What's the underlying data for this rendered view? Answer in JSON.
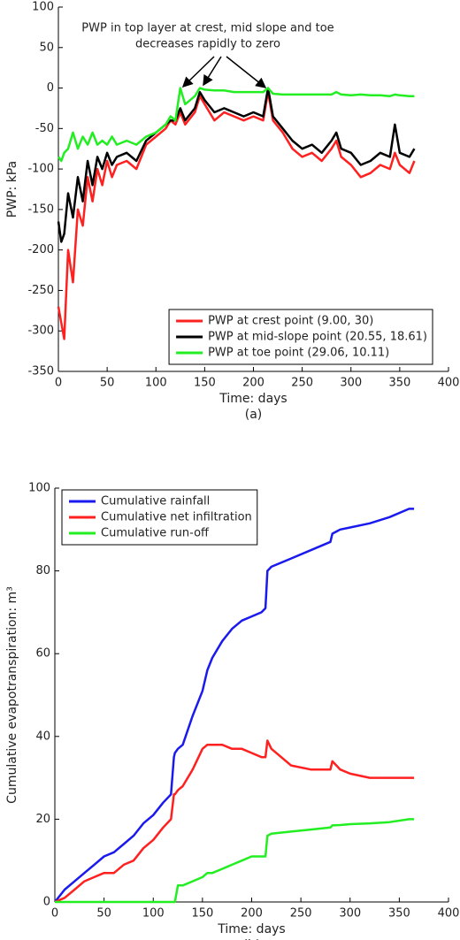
{
  "chart_data": [
    {
      "type": "line",
      "annotation": [
        "PWP in top layer at crest, mid slope and toe",
        "decreases rapidly to zero"
      ],
      "xlabel": "Time: days",
      "ylabel": "PWP: kPa",
      "caption": "(a)",
      "x": [
        0,
        3,
        6,
        10,
        15,
        20,
        25,
        30,
        35,
        40,
        45,
        50,
        55,
        60,
        70,
        80,
        90,
        100,
        110,
        115,
        120,
        125,
        130,
        140,
        145,
        150,
        160,
        170,
        180,
        190,
        200,
        210,
        215,
        220,
        230,
        240,
        250,
        260,
        270,
        280,
        285,
        290,
        300,
        310,
        320,
        330,
        340,
        345,
        350,
        360,
        365
      ],
      "series": [
        {
          "name": "PWP at crest point (9.00, 30)",
          "color": "#ff2020",
          "values": [
            -270,
            -290,
            -310,
            -200,
            -240,
            -150,
            -170,
            -110,
            -140,
            -100,
            -120,
            -90,
            -110,
            -95,
            -90,
            -100,
            -70,
            -60,
            -50,
            -40,
            -45,
            -30,
            -45,
            -30,
            -10,
            -20,
            -40,
            -30,
            -35,
            -40,
            -35,
            -40,
            -5,
            -40,
            -55,
            -75,
            -85,
            -80,
            -90,
            -75,
            -65,
            -85,
            -95,
            -110,
            -105,
            -95,
            -100,
            -80,
            -95,
            -105,
            -90
          ]
        },
        {
          "name": "PWP at mid-slope point (20.55, 18.61)",
          "color": "#000000",
          "values": [
            -165,
            -190,
            -180,
            -130,
            -160,
            -110,
            -140,
            -90,
            -120,
            -85,
            -100,
            -80,
            -95,
            -85,
            -80,
            -90,
            -65,
            -55,
            -45,
            -40,
            -40,
            -25,
            -40,
            -25,
            -5,
            -15,
            -30,
            -25,
            -30,
            -35,
            -30,
            -35,
            0,
            -35,
            -50,
            -65,
            -75,
            -70,
            -80,
            -65,
            -55,
            -75,
            -80,
            -95,
            -90,
            -80,
            -85,
            -45,
            -80,
            -85,
            -75
          ]
        },
        {
          "name": "PWP at toe point (29.06, 10.11)",
          "color": "#22ee22",
          "values": [
            -85,
            -90,
            -80,
            -75,
            -55,
            -75,
            -60,
            -70,
            -55,
            -70,
            -65,
            -70,
            -60,
            -70,
            -65,
            -70,
            -60,
            -55,
            -45,
            -35,
            -40,
            0,
            -20,
            -10,
            0,
            -2,
            -3,
            -3,
            -5,
            -5,
            -5,
            -5,
            0,
            -7,
            -8,
            -8,
            -8,
            -8,
            -8,
            -8,
            -5,
            -8,
            -9,
            -8,
            -9,
            -9,
            -10,
            -8,
            -9,
            -10,
            -10
          ]
        }
      ],
      "xlim": [
        0,
        400
      ],
      "xticks": [
        0,
        50,
        100,
        150,
        200,
        250,
        300,
        350,
        400
      ],
      "ylim": [
        -350,
        100
      ],
      "yticks": [
        -350,
        -300,
        -250,
        -200,
        -150,
        -100,
        -50,
        0,
        50,
        100
      ],
      "legend": "lower right"
    },
    {
      "type": "line",
      "xlabel": "Time: days",
      "ylabel": "Cumulative evapotranspiration: m³",
      "caption": "(b)",
      "x": [
        0,
        10,
        20,
        30,
        40,
        50,
        60,
        70,
        80,
        90,
        100,
        110,
        118,
        121,
        122,
        125,
        130,
        140,
        150,
        155,
        160,
        170,
        180,
        190,
        200,
        210,
        214,
        216,
        220,
        240,
        260,
        280,
        282,
        290,
        300,
        320,
        340,
        360,
        365
      ],
      "series": [
        {
          "name": "Cumulative rainfall",
          "color": "#1a1aee",
          "values": [
            0,
            3,
            5,
            7,
            9,
            11,
            12,
            14,
            16,
            19,
            21,
            24,
            26,
            35,
            36,
            37,
            38,
            45,
            51,
            56,
            59,
            63,
            66,
            68,
            69,
            70,
            71,
            80,
            81,
            83,
            85,
            87,
            89,
            90,
            90.5,
            91.5,
            93,
            95,
            95
          ]
        },
        {
          "name": "Cumulative net infiltration",
          "color": "#ff2020",
          "values": [
            0,
            1,
            3,
            5,
            6,
            7,
            7,
            9,
            10,
            13,
            15,
            18,
            20,
            26,
            26,
            27,
            28,
            32,
            37,
            38,
            38,
            38,
            37,
            37,
            36,
            35,
            35,
            39,
            37,
            33,
            32,
            32,
            34,
            32,
            31,
            30,
            30,
            30,
            30
          ]
        },
        {
          "name": "Cumulative run-off",
          "color": "#22ee22",
          "values": [
            0,
            0,
            0,
            0,
            0,
            0,
            0,
            0,
            0,
            0,
            0,
            0,
            0,
            0,
            0,
            4,
            4,
            5,
            6,
            7,
            7,
            8,
            9,
            10,
            11,
            11,
            11,
            16,
            16.5,
            17,
            17.5,
            18,
            18.5,
            18.6,
            18.8,
            19,
            19.3,
            20,
            20
          ]
        }
      ],
      "xlim": [
        0,
        400
      ],
      "xticks": [
        0,
        50,
        100,
        150,
        200,
        250,
        300,
        350,
        400
      ],
      "ylim": [
        0,
        100
      ],
      "yticks": [
        0,
        20,
        40,
        60,
        80,
        100
      ],
      "legend": "upper left"
    }
  ]
}
